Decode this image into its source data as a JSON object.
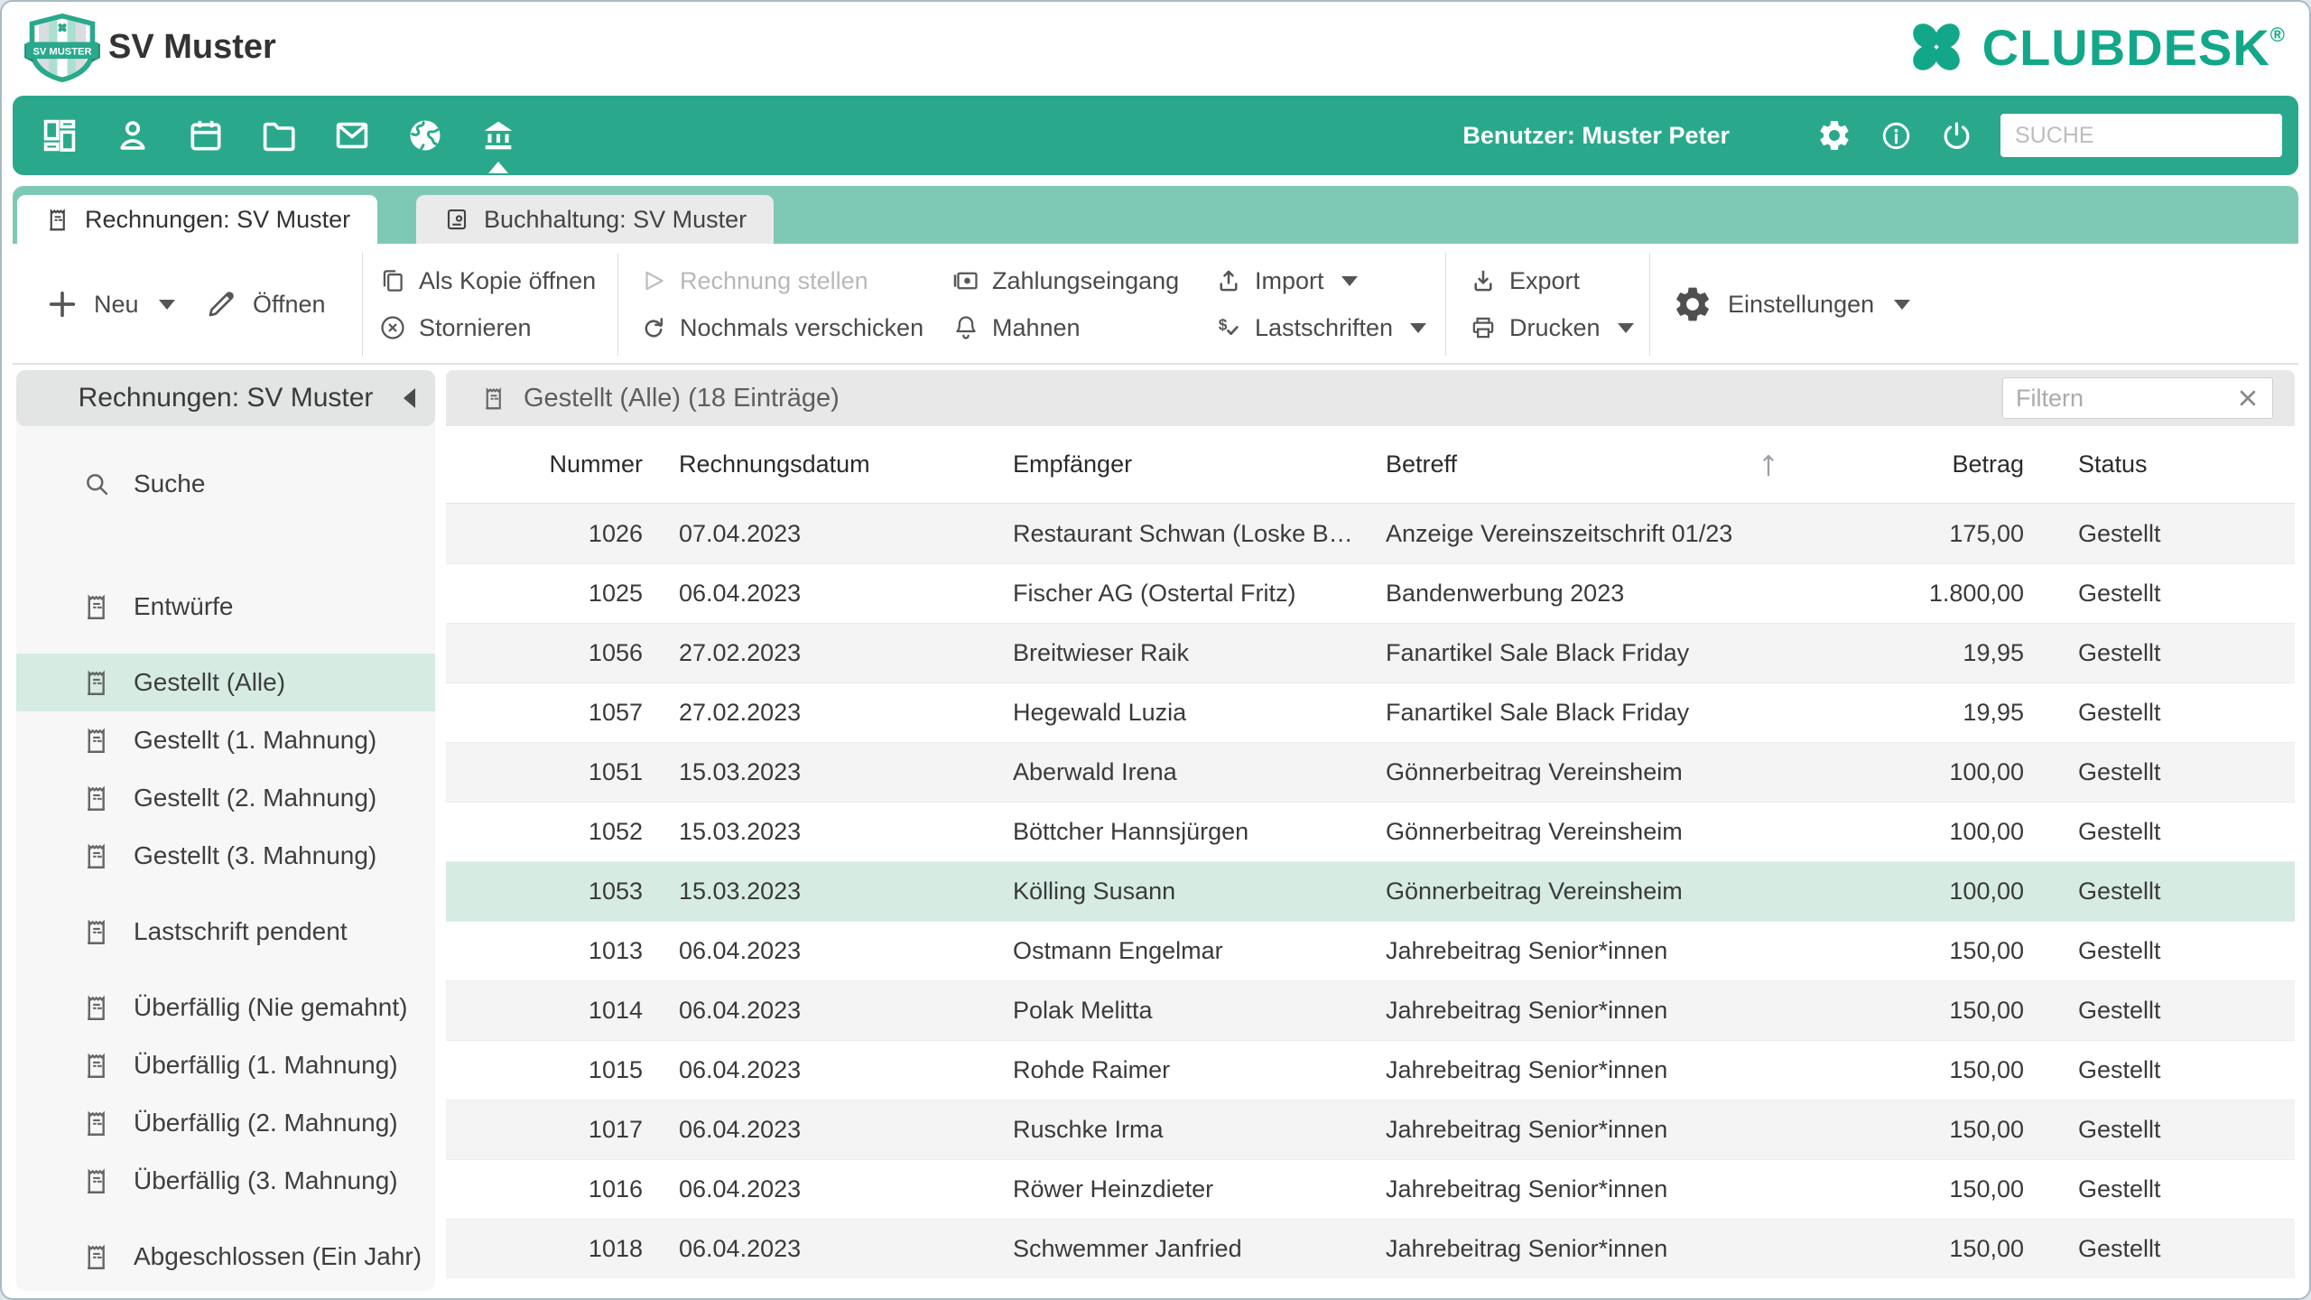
{
  "header": {
    "club_name": "SV Muster",
    "logo_text": "SV MUSTER",
    "brand": "CLUBDESK",
    "brand_reg": "®"
  },
  "colors": {
    "brand_teal": "#13A78A",
    "toolbar_teal": "#2AA88C",
    "tabstrip_teal": "#7EC9B5",
    "selection_mint": "#D6ECE3"
  },
  "nav_toolbar": {
    "user_label": "Benutzer: Muster Peter",
    "search_placeholder": "SUCHE",
    "modules": [
      "dashboard-icon",
      "contacts-icon",
      "calendar-icon",
      "documents-icon",
      "mail-icon",
      "website-icon",
      "finance-icon"
    ],
    "active_module": "finance-icon"
  },
  "tabs": [
    {
      "label": "Rechnungen: SV Muster",
      "icon": "invoice-icon",
      "active": true
    },
    {
      "label": "Buchhaltung: SV Muster",
      "icon": "ledger-icon",
      "active": false
    }
  ],
  "action_bar": {
    "neu": "Neu",
    "oeffnen": "Öffnen",
    "als_kopie_oeffnen": "Als Kopie öffnen",
    "stornieren": "Stornieren",
    "rechnung_stellen": "Rechnung stellen",
    "rechnung_stellen_enabled": false,
    "nochmals_verschicken": "Nochmals verschicken",
    "zahlungseingang": "Zahlungseingang",
    "mahnen": "Mahnen",
    "import": "Import",
    "lastschriften": "Lastschriften",
    "export": "Export",
    "drucken": "Drucken",
    "einstellungen": "Einstellungen"
  },
  "sidebar": {
    "title": "Rechnungen: SV Muster",
    "search_label": "Suche",
    "sections": [
      [
        {
          "label": "Entwürfe",
          "selected": false
        }
      ],
      [
        {
          "label": "Gestellt (Alle)",
          "selected": true
        },
        {
          "label": "Gestellt (1. Mahnung)",
          "selected": false
        },
        {
          "label": "Gestellt (2. Mahnung)",
          "selected": false
        },
        {
          "label": "Gestellt (3. Mahnung)",
          "selected": false
        }
      ],
      [
        {
          "label": "Lastschrift pendent",
          "selected": false
        }
      ],
      [
        {
          "label": "Überfällig (Nie gemahnt)",
          "selected": false
        },
        {
          "label": "Überfällig (1. Mahnung)",
          "selected": false
        },
        {
          "label": "Überfällig (2. Mahnung)",
          "selected": false
        },
        {
          "label": "Überfällig (3. Mahnung)",
          "selected": false
        }
      ],
      [
        {
          "label": "Abgeschlossen (Ein Jahr)",
          "selected": false
        }
      ]
    ]
  },
  "content": {
    "title": "Gestellt (Alle) (18 Einträge)",
    "filter_placeholder": "Filtern",
    "table": {
      "columns": [
        "Nummer",
        "Rechnungsdatum",
        "Empfänger",
        "Betreff",
        "Betrag",
        "Status"
      ],
      "sort": {
        "column": "Betreff",
        "direction": "asc"
      },
      "rows": [
        {
          "nummer": "1026",
          "datum": "07.04.2023",
          "empfaenger": "Restaurant Schwan (Loske B…",
          "betreff": "Anzeige Vereinszeitschrift 01/23",
          "betrag": "175,00",
          "status": "Gestellt",
          "selected": false
        },
        {
          "nummer": "1025",
          "datum": "06.04.2023",
          "empfaenger": "Fischer AG (Ostertal Fritz)",
          "betreff": "Bandenwerbung 2023",
          "betrag": "1.800,00",
          "status": "Gestellt",
          "selected": false
        },
        {
          "nummer": "1056",
          "datum": "27.02.2023",
          "empfaenger": "Breitwieser Raik",
          "betreff": "Fanartikel Sale Black Friday",
          "betrag": "19,95",
          "status": "Gestellt",
          "selected": false
        },
        {
          "nummer": "1057",
          "datum": "27.02.2023",
          "empfaenger": "Hegewald Luzia",
          "betreff": "Fanartikel Sale Black Friday",
          "betrag": "19,95",
          "status": "Gestellt",
          "selected": false
        },
        {
          "nummer": "1051",
          "datum": "15.03.2023",
          "empfaenger": "Aberwald Irena",
          "betreff": "Gönnerbeitrag Vereinsheim",
          "betrag": "100,00",
          "status": "Gestellt",
          "selected": false
        },
        {
          "nummer": "1052",
          "datum": "15.03.2023",
          "empfaenger": "Böttcher Hannsjürgen",
          "betreff": "Gönnerbeitrag Vereinsheim",
          "betrag": "100,00",
          "status": "Gestellt",
          "selected": false
        },
        {
          "nummer": "1053",
          "datum": "15.03.2023",
          "empfaenger": "Kölling Susann",
          "betreff": "Gönnerbeitrag Vereinsheim",
          "betrag": "100,00",
          "status": "Gestellt",
          "selected": true
        },
        {
          "nummer": "1013",
          "datum": "06.04.2023",
          "empfaenger": "Ostmann Engelmar",
          "betreff": "Jahrebeitrag Senior*innen",
          "betrag": "150,00",
          "status": "Gestellt",
          "selected": false
        },
        {
          "nummer": "1014",
          "datum": "06.04.2023",
          "empfaenger": "Polak Melitta",
          "betreff": "Jahrebeitrag Senior*innen",
          "betrag": "150,00",
          "status": "Gestellt",
          "selected": false
        },
        {
          "nummer": "1015",
          "datum": "06.04.2023",
          "empfaenger": "Rohde Raimer",
          "betreff": "Jahrebeitrag Senior*innen",
          "betrag": "150,00",
          "status": "Gestellt",
          "selected": false
        },
        {
          "nummer": "1017",
          "datum": "06.04.2023",
          "empfaenger": "Ruschke Irma",
          "betreff": "Jahrebeitrag Senior*innen",
          "betrag": "150,00",
          "status": "Gestellt",
          "selected": false
        },
        {
          "nummer": "1016",
          "datum": "06.04.2023",
          "empfaenger": "Röwer Heinzdieter",
          "betreff": "Jahrebeitrag Senior*innen",
          "betrag": "150,00",
          "status": "Gestellt",
          "selected": false
        },
        {
          "nummer": "1018",
          "datum": "06.04.2023",
          "empfaenger": "Schwemmer Janfried",
          "betreff": "Jahrebeitrag Senior*innen",
          "betrag": "150,00",
          "status": "Gestellt",
          "selected": false
        }
      ]
    }
  }
}
